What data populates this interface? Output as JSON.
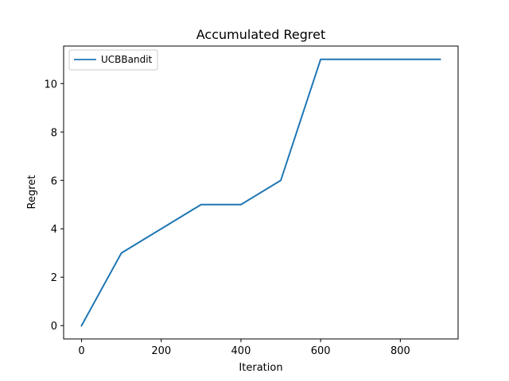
{
  "chart_data": {
    "type": "line",
    "title": "Accumulated Regret",
    "xlabel": "Iteration",
    "ylabel": "Regret",
    "xlim": [
      -45,
      945
    ],
    "ylim": [
      -0.55,
      11.55
    ],
    "xticks": [
      0,
      200,
      400,
      600,
      800
    ],
    "yticks": [
      0,
      2,
      4,
      6,
      8,
      10
    ],
    "grid": false,
    "legend_position": "upper-left",
    "series": [
      {
        "name": "UCBBandit",
        "color": "#1f77b4",
        "x": [
          0,
          100,
          200,
          300,
          400,
          500,
          600,
          700,
          800,
          900
        ],
        "y": [
          0,
          3,
          4,
          5,
          5,
          6,
          11,
          11,
          11,
          11
        ]
      }
    ]
  }
}
